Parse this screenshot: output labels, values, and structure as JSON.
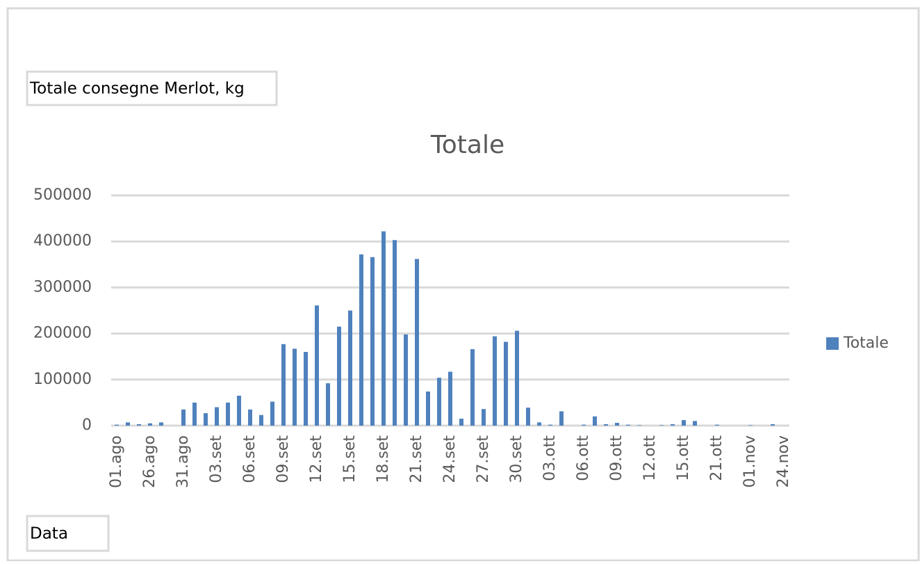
{
  "chart_data": {
    "type": "bar",
    "title": "Totale",
    "value_field": "Totale consegne Merlot, kg",
    "axis_field": "Data",
    "categories": [
      "01.ago",
      null,
      null,
      "26.ago",
      null,
      null,
      "31.ago",
      null,
      null,
      "03.set",
      null,
      null,
      "06.set",
      null,
      null,
      "09.set",
      null,
      null,
      "12.set",
      null,
      null,
      "15.set",
      null,
      null,
      "18.set",
      null,
      null,
      "21.set",
      null,
      null,
      "24.set",
      null,
      null,
      "27.set",
      null,
      null,
      "30.set",
      null,
      null,
      "03.ott",
      null,
      null,
      "06.ott",
      null,
      null,
      "09.ott",
      null,
      null,
      "12.ott",
      null,
      null,
      "15.ott",
      null,
      null,
      "21.ott",
      null,
      null,
      "01.nov",
      null,
      null,
      "24.nov"
    ],
    "series": [
      {
        "name": "Totale",
        "color": "#4f81bd",
        "values": [
          2000,
          7000,
          3000,
          5000,
          7000,
          0,
          35000,
          50000,
          27000,
          40000,
          50000,
          65000,
          35000,
          23000,
          52000,
          177000,
          167000,
          160000,
          261000,
          92000,
          215000,
          250000,
          372000,
          366000,
          422000,
          403000,
          198000,
          362000,
          74000,
          104000,
          117000,
          15000,
          166000,
          36000,
          194000,
          182000,
          206000,
          39000,
          7000,
          2000,
          31000,
          0,
          2000,
          20000,
          3000,
          6000,
          2000,
          1000,
          0,
          1000,
          3000,
          12000,
          10000,
          0,
          2000,
          0,
          0,
          1000,
          0,
          3000,
          0
        ]
      }
    ],
    "ylim": [
      0,
      500000
    ],
    "yticks": [
      0,
      100000,
      200000,
      300000,
      400000,
      500000
    ],
    "grid": true,
    "legend": "right"
  }
}
